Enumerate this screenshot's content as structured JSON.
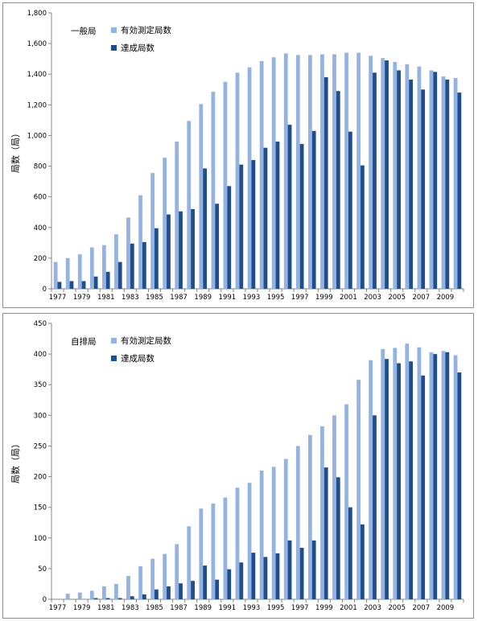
{
  "chart_data": [
    {
      "type": "bar",
      "title": "一般局",
      "ylabel": "局数（局）",
      "ylim": [
        0,
        1800
      ],
      "yticks": [
        "0",
        "200",
        "400",
        "600",
        "800",
        "1,000",
        "1,200",
        "1,400",
        "1,600",
        "1,800"
      ],
      "ytick_values": [
        0,
        200,
        400,
        600,
        800,
        1000,
        1200,
        1400,
        1600,
        1800
      ],
      "categories": [
        "1977",
        "1978",
        "1979",
        "1980",
        "1981",
        "1982",
        "1983",
        "1984",
        "1985",
        "1986",
        "1987",
        "1988",
        "1989",
        "1990",
        "1991",
        "1992",
        "1993",
        "1994",
        "1995",
        "1996",
        "1997",
        "1998",
        "1999",
        "2000",
        "2001",
        "2002",
        "2003",
        "2004",
        "2005",
        "2006",
        "2007",
        "2008",
        "2009",
        "2010"
      ],
      "xtick_labels": [
        "1977",
        "",
        "1979",
        "",
        "1981",
        "",
        "1983",
        "",
        "1985",
        "",
        "1987",
        "",
        "1989",
        "",
        "1991",
        "",
        "1993",
        "",
        "1995",
        "",
        "1997",
        "",
        "1999",
        "",
        "2001",
        "",
        "2003",
        "",
        "2005",
        "",
        "2007",
        "",
        "2009",
        ""
      ],
      "legend": "top-left",
      "series": [
        {
          "name": "有効測定局数",
          "color": "#95b3e0",
          "values": [
            175,
            200,
            225,
            270,
            285,
            355,
            465,
            610,
            755,
            855,
            960,
            1095,
            1205,
            1285,
            1350,
            1410,
            1445,
            1485,
            1510,
            1535,
            1525,
            1525,
            1530,
            1530,
            1540,
            1540,
            1520,
            1505,
            1480,
            1465,
            1450,
            1425,
            1385,
            1375
          ]
        },
        {
          "name": "達成局数",
          "color": "#1f4e8c",
          "values": [
            45,
            50,
            50,
            80,
            110,
            175,
            295,
            305,
            395,
            485,
            505,
            520,
            785,
            555,
            670,
            810,
            840,
            920,
            960,
            1070,
            945,
            1030,
            1380,
            1290,
            1025,
            805,
            1410,
            1490,
            1425,
            1365,
            1300,
            1415,
            1365,
            1280
          ]
        }
      ]
    },
    {
      "type": "bar",
      "title": "自排局",
      "ylabel": "局数（局）",
      "ylim": [
        0,
        450
      ],
      "yticks": [
        "0",
        "50",
        "100",
        "150",
        "200",
        "250",
        "300",
        "350",
        "400",
        "450"
      ],
      "ytick_values": [
        0,
        50,
        100,
        150,
        200,
        250,
        300,
        350,
        400,
        450
      ],
      "categories": [
        "1977",
        "1978",
        "1979",
        "1980",
        "1981",
        "1982",
        "1983",
        "1984",
        "1985",
        "1986",
        "1987",
        "1988",
        "1989",
        "1990",
        "1991",
        "1992",
        "1993",
        "1994",
        "1995",
        "1996",
        "1997",
        "1998",
        "1999",
        "2000",
        "2001",
        "2002",
        "2003",
        "2004",
        "2005",
        "2006",
        "2007",
        "2008",
        "2009",
        "2010"
      ],
      "xtick_labels": [
        "1977",
        "",
        "1979",
        "",
        "1981",
        "",
        "1983",
        "",
        "1985",
        "",
        "1987",
        "",
        "1989",
        "",
        "1991",
        "",
        "1993",
        "",
        "1995",
        "",
        "1997",
        "",
        "1999",
        "",
        "2001",
        "",
        "2003",
        "",
        "2005",
        "",
        "2007",
        "",
        "2009",
        ""
      ],
      "legend": "top-left",
      "series": [
        {
          "name": "有効測定局数",
          "color": "#95b3e0",
          "values": [
            0,
            9,
            11,
            14,
            21,
            25,
            38,
            54,
            66,
            74,
            90,
            119,
            148,
            156,
            166,
            182,
            190,
            210,
            216,
            229,
            250,
            268,
            282,
            300,
            318,
            358,
            390,
            408,
            410,
            417,
            411,
            403,
            405,
            398
          ]
        },
        {
          "name": "達成局数",
          "color": "#1f4e8c",
          "values": [
            0,
            0,
            0,
            2,
            2,
            2,
            5,
            8,
            16,
            21,
            26,
            30,
            55,
            32,
            49,
            60,
            76,
            69,
            75,
            96,
            84,
            96,
            215,
            199,
            150,
            122,
            300,
            392,
            385,
            388,
            365,
            400,
            403,
            370
          ]
        }
      ]
    }
  ]
}
